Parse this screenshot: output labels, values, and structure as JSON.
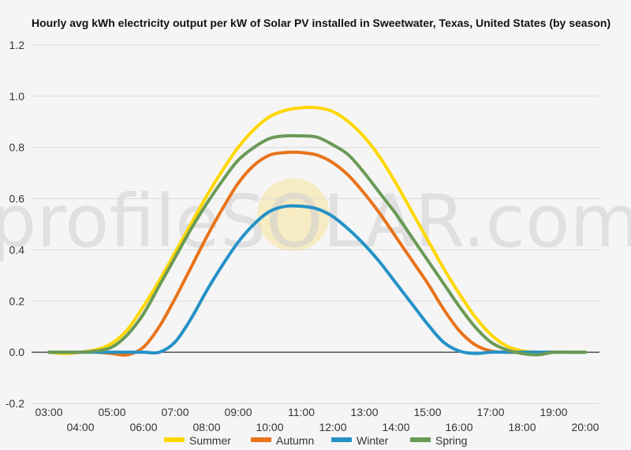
{
  "chart_data": {
    "type": "line",
    "title": "Hourly avg kWh electricity output per kW of Solar PV installed in Sweetwater, Texas, United States (by season)",
    "xlabel": "",
    "ylabel": "",
    "ylim": [
      -0.2,
      1.2
    ],
    "y_ticks": [
      "-0.2",
      "0.0",
      "0.2",
      "0.4",
      "0.6",
      "0.8",
      "1.0",
      "1.2"
    ],
    "x_ticks": [
      "03:00",
      "04:00",
      "05:00",
      "06:00",
      "07:00",
      "08:00",
      "09:00",
      "10:00",
      "11:00",
      "12:00",
      "13:00",
      "14:00",
      "15:00",
      "16:00",
      "17:00",
      "18:00",
      "19:00",
      "20:00"
    ],
    "x": [
      3,
      3.5,
      4,
      4.5,
      5,
      5.5,
      6,
      6.5,
      7,
      7.5,
      8,
      8.5,
      9,
      9.5,
      10,
      10.5,
      11,
      11.5,
      12,
      12.5,
      13,
      13.5,
      14,
      14.5,
      15,
      15.5,
      16,
      16.5,
      17,
      17.5,
      18,
      18.5,
      19,
      19.5,
      20
    ],
    "grid": true,
    "legend": "bottom",
    "watermark": "profileSOLAR.com",
    "series": [
      {
        "name": "Summer",
        "color": "#ffd700",
        "values": [
          0.0,
          -0.005,
          0.0,
          0.01,
          0.035,
          0.09,
          0.18,
          0.28,
          0.39,
          0.5,
          0.61,
          0.71,
          0.8,
          0.87,
          0.92,
          0.945,
          0.955,
          0.955,
          0.94,
          0.9,
          0.84,
          0.76,
          0.66,
          0.55,
          0.44,
          0.33,
          0.23,
          0.14,
          0.07,
          0.025,
          0.005,
          0.0,
          0.0,
          0.0,
          0.0
        ]
      },
      {
        "name": "Autumn",
        "color": "#e8731a",
        "values": [
          0.0,
          0.0,
          0.0,
          0.0,
          -0.005,
          -0.01,
          0.02,
          0.1,
          0.21,
          0.33,
          0.45,
          0.56,
          0.66,
          0.73,
          0.77,
          0.78,
          0.78,
          0.77,
          0.74,
          0.69,
          0.62,
          0.54,
          0.45,
          0.36,
          0.27,
          0.17,
          0.085,
          0.03,
          0.005,
          0.0,
          0.0,
          0.0,
          0.0,
          0.0,
          0.0
        ]
      },
      {
        "name": "Winter",
        "color": "#2592c7",
        "values": [
          0.0,
          0.0,
          0.0,
          0.0,
          0.0,
          0.0,
          0.0,
          0.0,
          0.04,
          0.13,
          0.24,
          0.34,
          0.43,
          0.5,
          0.55,
          0.57,
          0.57,
          0.56,
          0.53,
          0.48,
          0.42,
          0.35,
          0.27,
          0.19,
          0.11,
          0.04,
          0.005,
          -0.005,
          0.0,
          0.0,
          0.0,
          0.0,
          0.0,
          0.0,
          0.0
        ]
      },
      {
        "name": "Spring",
        "color": "#6a9a56",
        "values": [
          0.0,
          0.0,
          0.0,
          0.005,
          0.02,
          0.07,
          0.15,
          0.26,
          0.37,
          0.48,
          0.58,
          0.67,
          0.75,
          0.8,
          0.835,
          0.845,
          0.845,
          0.84,
          0.81,
          0.77,
          0.7,
          0.62,
          0.54,
          0.45,
          0.36,
          0.27,
          0.18,
          0.1,
          0.04,
          0.01,
          -0.005,
          -0.01,
          0.0,
          0.0,
          0.0
        ]
      }
    ]
  }
}
